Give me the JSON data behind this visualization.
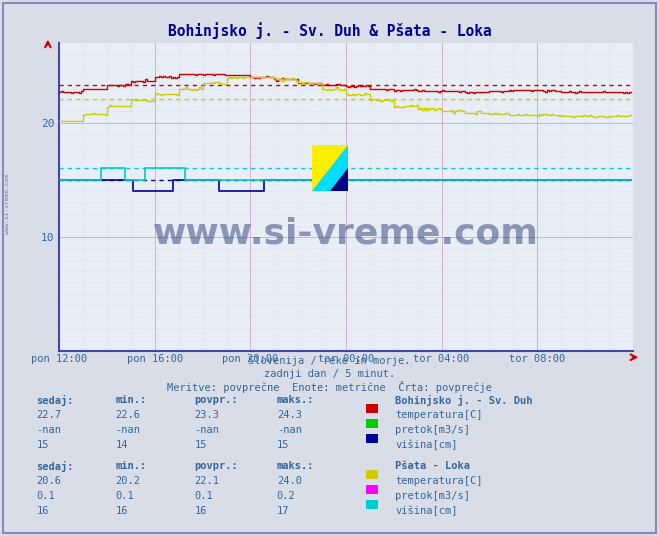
{
  "title": "Bohinjsko j. - Sv. Duh & Pšata - Loka",
  "title_color": "#000099",
  "bg_color": "#d8dde8",
  "plot_bg_color": "#e8eef5",
  "xlim": [
    0,
    288
  ],
  "ylim": [
    0,
    27
  ],
  "ytick_positions": [
    10,
    20
  ],
  "ytick_labels": [
    "10",
    "20"
  ],
  "xtick_labels": [
    "pon 12:00",
    "pon 16:00",
    "pon 20:00",
    "tor 00:00",
    "tor 04:00",
    "tor 08:00"
  ],
  "xtick_positions": [
    0,
    48,
    96,
    144,
    192,
    240
  ],
  "n_points": 288,
  "subtitle1": "Slovenija / reke in morje.",
  "subtitle2": "zadnji dan / 5 minut.",
  "subtitle3": "Meritve: povprečne  Enote: metrične  Črta: povprečje",
  "watermark_text": "www.si-vreme.com",
  "watermark_color": "#1a2a6c",
  "station1_name": "Bohinjsko j. - Sv. Duh",
  "station2_name": "Pšata - Loka",
  "s1_temp_color": "#cc0000",
  "s1_flow_color": "#00cc00",
  "s1_height_color": "#000099",
  "s2_temp_color": "#cccc00",
  "s2_flow_color": "#ff00ff",
  "s2_height_color": "#00cccc",
  "s1_temp_avg": 23.3,
  "s1_temp_min": 22.6,
  "s1_temp_max": 24.3,
  "s1_temp_sedaj": 22.7,
  "s1_height_avg": 15,
  "s1_height_min": 14,
  "s1_height_max": 15,
  "s1_height_sedaj": 15,
  "s2_temp_avg": 22.1,
  "s2_temp_min": 20.2,
  "s2_temp_max": 24.0,
  "s2_temp_sedaj": 20.6,
  "s2_flow_avg": 0.1,
  "s2_flow_min": 0.1,
  "s2_flow_max": 0.2,
  "s2_flow_sedaj": 0.1,
  "s2_height_avg": 16,
  "s2_height_min": 16,
  "s2_height_max": 17,
  "s2_height_sedaj": 16,
  "border_color": "#8080cc",
  "axis_color": "#4444aa",
  "grid_minor_color": "#d8c8d8",
  "grid_major_color": "#cc99cc",
  "text_color": "#336699",
  "left_label": "www.si-vreme.com"
}
